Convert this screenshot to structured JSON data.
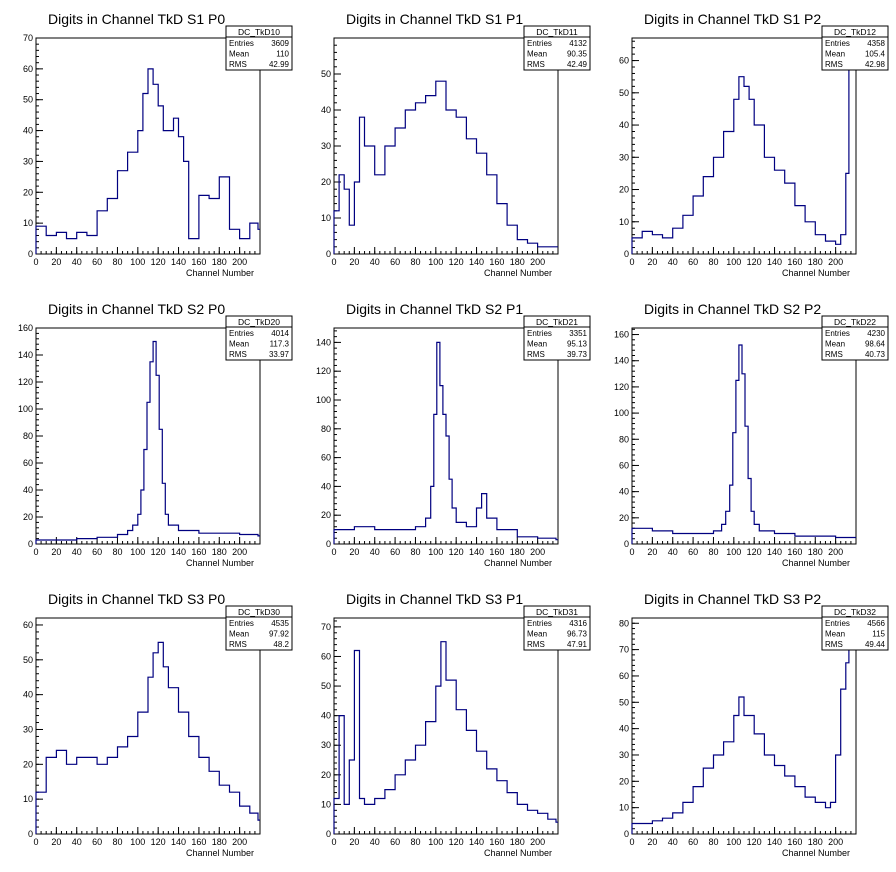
{
  "colors": {
    "line": "#000080",
    "axis": "#000000",
    "background": "#ffffff"
  },
  "chart_data": [
    {
      "type": "histogram",
      "title": "Digits in Channel TkD S1 P0",
      "xlabel": "Channel Number",
      "xlim": [
        0,
        220
      ],
      "ylim": [
        0,
        70
      ],
      "xticks": [
        0,
        20,
        40,
        60,
        80,
        100,
        120,
        140,
        160,
        180,
        200
      ],
      "yticks": [
        0,
        10,
        20,
        30,
        40,
        50,
        60,
        70
      ],
      "stats": {
        "name": "DC_TkD10",
        "entries_label": "Entries",
        "entries": "3609",
        "mean_label": "Mean",
        "mean": "110",
        "rms_label": "RMS",
        "rms": "42.99"
      },
      "x": [
        0,
        10,
        20,
        30,
        40,
        50,
        60,
        70,
        80,
        90,
        100,
        105,
        110,
        115,
        120,
        125,
        130,
        135,
        140,
        145,
        150,
        160,
        170,
        180,
        190,
        200,
        210,
        218
      ],
      "values": [
        9,
        6,
        7,
        5,
        7,
        6,
        14,
        18,
        27,
        33,
        40,
        52,
        60,
        55,
        48,
        40,
        40,
        44,
        38,
        30,
        5,
        19,
        18,
        25,
        8,
        5,
        10,
        8
      ]
    },
    {
      "type": "histogram",
      "title": "Digits in Channel TkD S1 P1",
      "xlabel": "Channel Number",
      "xlim": [
        0,
        220
      ],
      "ylim": [
        0,
        60
      ],
      "xticks": [
        0,
        20,
        40,
        60,
        80,
        100,
        120,
        140,
        160,
        180,
        200
      ],
      "yticks": [
        0,
        10,
        20,
        30,
        40,
        50
      ],
      "stats": {
        "name": "DC_TkD11",
        "entries_label": "Entries",
        "entries": "4132",
        "mean_label": "Mean",
        "mean": "90.35",
        "rms_label": "RMS",
        "rms": "42.49"
      },
      "x": [
        0,
        5,
        10,
        15,
        20,
        25,
        30,
        40,
        50,
        60,
        70,
        80,
        90,
        100,
        110,
        120,
        130,
        140,
        150,
        160,
        170,
        180,
        190,
        200,
        210,
        218
      ],
      "values": [
        12,
        22,
        18,
        8,
        20,
        38,
        30,
        22,
        30,
        35,
        40,
        42,
        44,
        48,
        40,
        38,
        32,
        28,
        22,
        14,
        8,
        4,
        3,
        2,
        2,
        2
      ]
    },
    {
      "type": "histogram",
      "title": "Digits in Channel TkD S1 P2",
      "xlabel": "Channel Number",
      "xlim": [
        0,
        220
      ],
      "ylim": [
        0,
        67
      ],
      "xticks": [
        0,
        20,
        40,
        60,
        80,
        100,
        120,
        140,
        160,
        180,
        200
      ],
      "yticks": [
        0,
        10,
        20,
        30,
        40,
        50,
        60
      ],
      "stats": {
        "name": "DC_TkD12",
        "entries_label": "Entries",
        "entries": "4358",
        "mean_label": "Mean",
        "mean": "105.4",
        "rms_label": "RMS",
        "rms": "42.98"
      },
      "x": [
        0,
        10,
        20,
        30,
        40,
        50,
        60,
        70,
        80,
        90,
        100,
        105,
        110,
        115,
        120,
        130,
        140,
        150,
        160,
        170,
        180,
        190,
        200,
        205,
        210,
        213
      ],
      "values": [
        5,
        7,
        6,
        5,
        8,
        12,
        18,
        24,
        30,
        38,
        48,
        55,
        52,
        48,
        40,
        30,
        26,
        22,
        15,
        10,
        6,
        4,
        3,
        6,
        25,
        60
      ]
    },
    {
      "type": "histogram",
      "title": "Digits in Channel TkD S2 P0",
      "xlabel": "Channel Number",
      "xlim": [
        0,
        220
      ],
      "ylim": [
        0,
        160
      ],
      "xticks": [
        0,
        20,
        40,
        60,
        80,
        100,
        120,
        140,
        160,
        180,
        200
      ],
      "yticks": [
        0,
        20,
        40,
        60,
        80,
        100,
        120,
        140,
        160
      ],
      "stats": {
        "name": "DC_TkD20",
        "entries_label": "Entries",
        "entries": "4014",
        "mean_label": "Mean",
        "mean": "117.3",
        "rms_label": "RMS",
        "rms": "33.97"
      },
      "x": [
        0,
        20,
        40,
        60,
        80,
        90,
        95,
        100,
        103,
        106,
        109,
        112,
        115,
        118,
        121,
        124,
        127,
        130,
        140,
        160,
        180,
        200,
        218
      ],
      "values": [
        3,
        3,
        4,
        5,
        7,
        10,
        14,
        22,
        40,
        70,
        105,
        135,
        150,
        125,
        85,
        45,
        22,
        14,
        10,
        8,
        8,
        7,
        6
      ]
    },
    {
      "type": "histogram",
      "title": "Digits in Channel TkD S2 P1",
      "xlabel": "Channel Number",
      "xlim": [
        0,
        220
      ],
      "ylim": [
        0,
        150
      ],
      "xticks": [
        0,
        20,
        40,
        60,
        80,
        100,
        120,
        140,
        160,
        180,
        200
      ],
      "yticks": [
        0,
        20,
        40,
        60,
        80,
        100,
        120,
        140
      ],
      "stats": {
        "name": "DC_TkD21",
        "entries_label": "Entries",
        "entries": "3351",
        "mean_label": "Mean",
        "mean": "95.13",
        "rms_label": "RMS",
        "rms": "39.73"
      },
      "x": [
        0,
        20,
        40,
        60,
        80,
        90,
        95,
        98,
        101,
        104,
        107,
        110,
        113,
        116,
        120,
        130,
        140,
        145,
        150,
        160,
        180,
        200,
        218
      ],
      "values": [
        10,
        12,
        10,
        10,
        12,
        18,
        40,
        90,
        140,
        110,
        90,
        75,
        45,
        25,
        15,
        12,
        25,
        35,
        18,
        10,
        5,
        4,
        3
      ]
    },
    {
      "type": "histogram",
      "title": "Digits in Channel TkD S2 P2",
      "xlabel": "Channel Number",
      "xlim": [
        0,
        220
      ],
      "ylim": [
        0,
        165
      ],
      "xticks": [
        0,
        20,
        40,
        60,
        80,
        100,
        120,
        140,
        160,
        180,
        200
      ],
      "yticks": [
        0,
        20,
        40,
        60,
        80,
        100,
        120,
        140,
        160
      ],
      "stats": {
        "name": "DC_TkD22",
        "entries_label": "Entries",
        "entries": "4230",
        "mean_label": "Mean",
        "mean": "98.64",
        "rms_label": "RMS",
        "rms": "40.73"
      },
      "x": [
        0,
        20,
        40,
        60,
        80,
        88,
        92,
        96,
        99,
        102,
        105,
        108,
        111,
        114,
        117,
        120,
        125,
        140,
        160,
        180,
        200,
        213
      ],
      "values": [
        12,
        10,
        8,
        8,
        10,
        15,
        25,
        45,
        85,
        125,
        152,
        130,
        90,
        50,
        25,
        15,
        10,
        8,
        6,
        6,
        5,
        5
      ]
    },
    {
      "type": "histogram",
      "title": "Digits in Channel TkD S3 P0",
      "xlabel": "Channel Number",
      "xlim": [
        0,
        220
      ],
      "ylim": [
        0,
        62
      ],
      "xticks": [
        0,
        20,
        40,
        60,
        80,
        100,
        120,
        140,
        160,
        180,
        200
      ],
      "yticks": [
        0,
        10,
        20,
        30,
        40,
        50,
        60
      ],
      "stats": {
        "name": "DC_TkD30",
        "entries_label": "Entries",
        "entries": "4535",
        "mean_label": "Mean",
        "mean": "97.92",
        "rms_label": "RMS",
        "rms": "48.2"
      },
      "x": [
        0,
        10,
        20,
        30,
        40,
        50,
        60,
        70,
        80,
        90,
        100,
        110,
        115,
        120,
        125,
        130,
        140,
        150,
        160,
        170,
        180,
        190,
        200,
        210,
        218
      ],
      "values": [
        12,
        22,
        24,
        20,
        22,
        22,
        20,
        22,
        25,
        28,
        35,
        45,
        52,
        55,
        48,
        42,
        35,
        28,
        22,
        18,
        14,
        12,
        8,
        6,
        4
      ]
    },
    {
      "type": "histogram",
      "title": "Digits in Channel TkD S3 P1",
      "xlabel": "Channel Number",
      "xlim": [
        0,
        220
      ],
      "ylim": [
        0,
        73
      ],
      "xticks": [
        0,
        20,
        40,
        60,
        80,
        100,
        120,
        140,
        160,
        180,
        200
      ],
      "yticks": [
        0,
        10,
        20,
        30,
        40,
        50,
        60,
        70
      ],
      "stats": {
        "name": "DC_TkD31",
        "entries_label": "Entries",
        "entries": "4316",
        "mean_label": "Mean",
        "mean": "96.73",
        "rms_label": "RMS",
        "rms": "47.91"
      },
      "x": [
        0,
        5,
        10,
        15,
        20,
        25,
        30,
        40,
        50,
        60,
        70,
        80,
        90,
        100,
        105,
        110,
        120,
        130,
        140,
        150,
        160,
        170,
        180,
        190,
        200,
        210,
        218
      ],
      "values": [
        12,
        40,
        10,
        25,
        62,
        12,
        10,
        12,
        15,
        20,
        25,
        30,
        38,
        50,
        65,
        52,
        42,
        35,
        28,
        22,
        18,
        14,
        10,
        8,
        7,
        5,
        4
      ]
    },
    {
      "type": "histogram",
      "title": "Digits in Channel TkD S3 P2",
      "xlabel": "Channel Number",
      "xlim": [
        0,
        220
      ],
      "ylim": [
        0,
        82
      ],
      "xticks": [
        0,
        20,
        40,
        60,
        80,
        100,
        120,
        140,
        160,
        180,
        200
      ],
      "yticks": [
        0,
        10,
        20,
        30,
        40,
        50,
        60,
        70,
        80
      ],
      "stats": {
        "name": "DC_TkD32",
        "entries_label": "Entries",
        "entries": "4566",
        "mean_label": "Mean",
        "mean": "115",
        "rms_label": "RMS",
        "rms": "49.44"
      },
      "x": [
        0,
        10,
        20,
        30,
        40,
        50,
        60,
        70,
        80,
        90,
        100,
        105,
        110,
        120,
        130,
        140,
        150,
        160,
        170,
        180,
        190,
        195,
        200,
        205,
        210,
        213
      ],
      "values": [
        4,
        4,
        5,
        6,
        8,
        12,
        18,
        25,
        30,
        35,
        45,
        52,
        45,
        38,
        30,
        26,
        22,
        18,
        14,
        12,
        10,
        12,
        30,
        55,
        65,
        75
      ]
    }
  ]
}
